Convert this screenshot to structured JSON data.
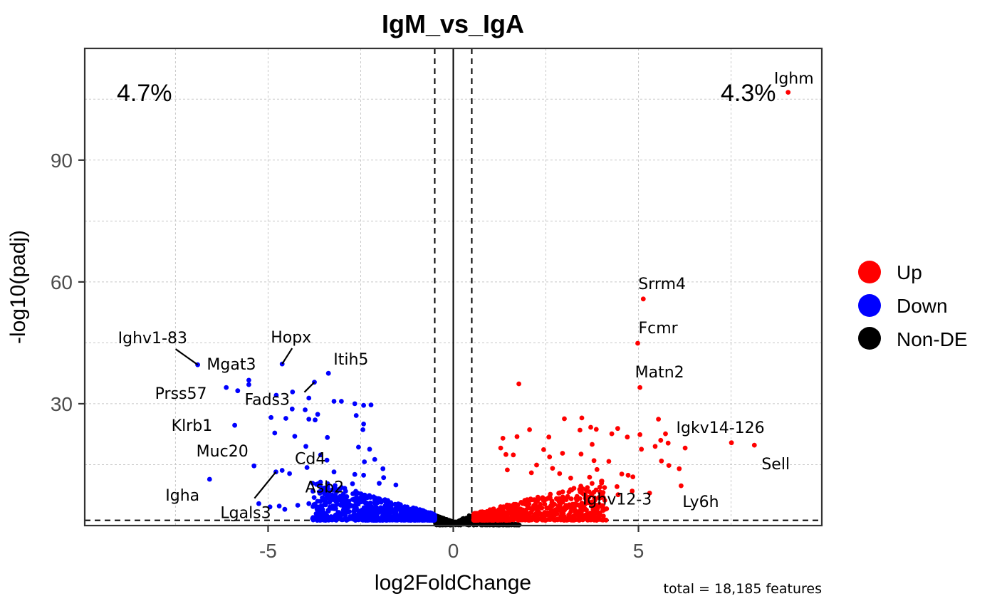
{
  "chart_data": {
    "type": "scatter",
    "title": "IgM_vs_IgA",
    "xlabel": "log2FoldChange",
    "ylabel": "-log10(padj)",
    "xlim": [
      -9.95,
      9.95
    ],
    "ylim": [
      0,
      117.5
    ],
    "x_ticks": [
      -5,
      0,
      5
    ],
    "x_tick_labels": [
      "-5",
      "0",
      "5"
    ],
    "y_ticks": [
      30,
      60,
      90
    ],
    "y_tick_labels": [
      "30",
      "60",
      "90"
    ],
    "grid": true,
    "thresholds": {
      "log2fc": [
        -0.5,
        0.5
      ],
      "neg_log10_padj": 1.3
    },
    "annotations": {
      "down_percent": "4.7%",
      "up_percent": "4.3%",
      "caption": "total = 18,185 features"
    },
    "legend": {
      "position": "right",
      "entries": [
        {
          "label": "Up",
          "color": "#ff0000"
        },
        {
          "label": "Down",
          "color": "#0000ff"
        },
        {
          "label": "Non-DE",
          "color": "#000000"
        }
      ]
    },
    "colors": {
      "up": "#ff0000",
      "down": "#0000ff",
      "nonde": "#000000"
    },
    "labeled_genes": [
      {
        "gene": "Ighm",
        "x": 9.04,
        "y": 106.7,
        "group": "up"
      },
      {
        "gene": "Srrm4",
        "x": 5.13,
        "y": 55.8,
        "group": "up"
      },
      {
        "gene": "Fcmr",
        "x": 4.98,
        "y": 44.9,
        "group": "up"
      },
      {
        "gene": "Matn2",
        "x": 5.04,
        "y": 34.0,
        "group": "up"
      },
      {
        "gene": "Igkv14-126",
        "x": 5.73,
        "y": 22.6,
        "group": "up"
      },
      {
        "gene": "Sell",
        "x": 8.13,
        "y": 19.8,
        "group": "up"
      },
      {
        "gene": "Ly6h",
        "x": 6.15,
        "y": 9.8,
        "group": "up"
      },
      {
        "gene": "Ighv12-3",
        "x": 4.45,
        "y": 7.6,
        "group": "up"
      },
      {
        "gene": "Ighv1-83",
        "x": -6.9,
        "y": 39.6,
        "group": "down"
      },
      {
        "gene": "Hopx",
        "x": -4.62,
        "y": 39.8,
        "group": "down"
      },
      {
        "gene": "Itih5",
        "x": -3.37,
        "y": 37.5,
        "group": "down"
      },
      {
        "gene": "Fads3",
        "x": -3.75,
        "y": 35.3,
        "group": "down"
      },
      {
        "gene": "Mgat3",
        "x": -5.52,
        "y": 35.8,
        "group": "down"
      },
      {
        "gene": "Prss57",
        "x": -6.13,
        "y": 34.0,
        "group": "down"
      },
      {
        "gene": "Klrb1",
        "x": -5.9,
        "y": 24.7,
        "group": "down"
      },
      {
        "gene": "Muc20",
        "x": -5.38,
        "y": 14.7,
        "group": "down"
      },
      {
        "gene": "Cd4",
        "x": -3.95,
        "y": 14.3,
        "group": "down"
      },
      {
        "gene": "Asb2",
        "x": -3.65,
        "y": 10.3,
        "group": "down"
      },
      {
        "gene": "Igha",
        "x": -6.58,
        "y": 11.4,
        "group": "down"
      },
      {
        "gene": "Lgals3",
        "x": -4.79,
        "y": 13.2,
        "group": "down"
      }
    ],
    "other_points": {
      "up": [
        [
          1.77,
          34.9
        ],
        [
          1.72,
          21.9
        ],
        [
          1.28,
          19.1
        ],
        [
          1.34,
          21.5
        ],
        [
          2.58,
          21.8
        ],
        [
          3.0,
          26.3
        ],
        [
          3.47,
          26.5
        ],
        [
          2.06,
          23.6
        ],
        [
          3.42,
          23.5
        ],
        [
          3.71,
          24.2
        ],
        [
          3.86,
          23.7
        ],
        [
          4.44,
          23.9
        ],
        [
          4.28,
          22.6
        ],
        [
          3.75,
          20.0
        ],
        [
          1.42,
          17.5
        ],
        [
          1.62,
          17.4
        ],
        [
          2.44,
          18.7
        ],
        [
          2.6,
          16.9
        ],
        [
          2.95,
          17.8
        ],
        [
          3.45,
          17.6
        ],
        [
          3.8,
          16.0
        ],
        [
          4.2,
          15.8
        ],
        [
          4.7,
          21.8
        ],
        [
          5.04,
          22.4
        ],
        [
          5.54,
          26.2
        ],
        [
          5.6,
          21.0
        ],
        [
          5.45,
          19.5
        ],
        [
          5.8,
          20.3
        ],
        [
          6.26,
          19.1
        ],
        [
          7.51,
          20.4
        ],
        [
          5.08,
          18.8
        ],
        [
          4.72,
          12.4
        ],
        [
          4.85,
          12.0
        ],
        [
          5.62,
          15.9
        ],
        [
          5.82,
          14.8
        ],
        [
          6.1,
          14.0
        ],
        [
          2.25,
          14.9
        ],
        [
          2.68,
          14.1
        ],
        [
          1.46,
          13.7
        ],
        [
          2.11,
          13.0
        ],
        [
          3.17,
          11.7
        ],
        [
          4.0,
          10.9
        ],
        [
          4.42,
          9.6
        ],
        [
          4.83,
          8.5
        ],
        [
          5.3,
          8.0
        ],
        [
          4.55,
          12.7
        ],
        [
          3.68,
          11.9
        ],
        [
          3.88,
          13.8
        ],
        [
          2.87,
          12.8
        ]
      ],
      "down": [
        [
          -5.52,
          34.7
        ],
        [
          -5.82,
          33.2
        ],
        [
          -4.78,
          32.1
        ],
        [
          -4.34,
          32.9
        ],
        [
          -3.9,
          31.4
        ],
        [
          -3.66,
          27.4
        ],
        [
          -4.0,
          28.5
        ],
        [
          -4.35,
          28.7
        ],
        [
          -4.92,
          26.6
        ],
        [
          -4.52,
          26.4
        ],
        [
          -3.9,
          26.2
        ],
        [
          -3.73,
          26.0
        ],
        [
          -4.82,
          22.8
        ],
        [
          -4.28,
          22.0
        ],
        [
          -3.98,
          19.5
        ],
        [
          -3.4,
          21.7
        ],
        [
          -3.22,
          30.6
        ],
        [
          -3.02,
          30.6
        ],
        [
          -2.66,
          30.0
        ],
        [
          -2.42,
          29.6
        ],
        [
          -2.22,
          29.7
        ],
        [
          -2.62,
          27.1
        ],
        [
          -2.42,
          25.0
        ],
        [
          -2.44,
          23.6
        ],
        [
          -3.58,
          17.4
        ],
        [
          -3.41,
          16.1
        ],
        [
          -2.56,
          19.3
        ],
        [
          -2.26,
          18.8
        ],
        [
          -2.4,
          15.7
        ],
        [
          -2.12,
          16.3
        ],
        [
          -1.9,
          14.0
        ],
        [
          -3.22,
          13.2
        ],
        [
          -2.66,
          12.6
        ],
        [
          -2.72,
          10.3
        ],
        [
          -4.62,
          13.6
        ],
        [
          -4.42,
          12.8
        ],
        [
          -3.02,
          9.4
        ],
        [
          -2.42,
          12.4
        ],
        [
          -1.55,
          10.0
        ],
        [
          -1.88,
          11.8
        ],
        [
          -2.0,
          10.4
        ],
        [
          -5.25,
          5.4
        ],
        [
          -4.95,
          4.6
        ],
        [
          -4.7,
          4.8
        ],
        [
          -4.55,
          4.0
        ],
        [
          -4.2,
          5.0
        ],
        [
          -3.9,
          5.4
        ],
        [
          -3.6,
          3.8
        ]
      ]
    },
    "bulk_clusters": {
      "up_count": 760,
      "down_count": 820,
      "nonde_count": 900
    }
  }
}
